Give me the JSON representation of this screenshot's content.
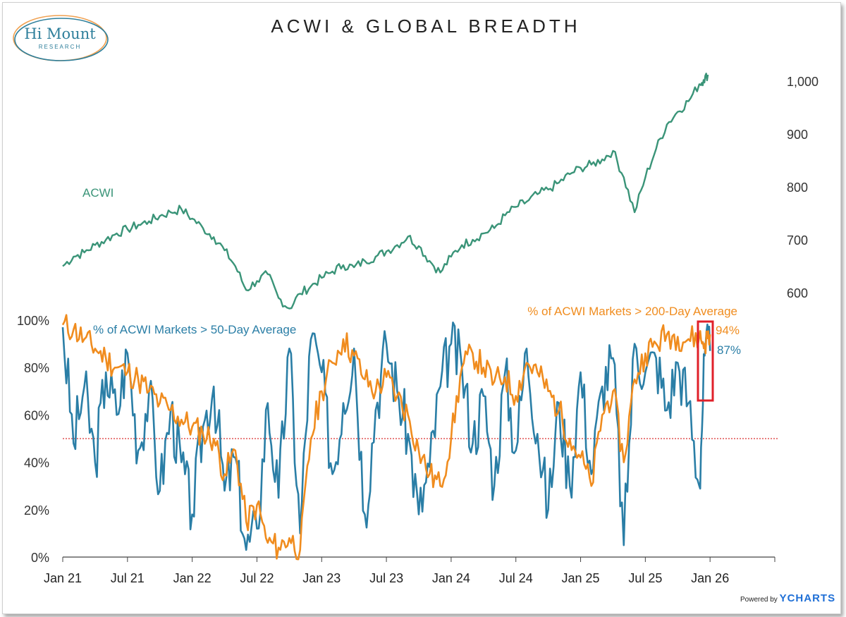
{
  "header": {
    "title": "ACWI & GLOBAL BREADTH"
  },
  "logo": {
    "name": "Hi Mount",
    "sub": "RESEARCH"
  },
  "footer": {
    "powered_by": "Powered by",
    "brand": "YCHARTS"
  },
  "colors": {
    "acwi": "#3a9478",
    "fifty": "#2a7ea6",
    "twohundred": "#f08c1e",
    "threshold": "#d93030",
    "highlight": "#e0202a"
  },
  "chart_data": [
    {
      "type": "line",
      "name": "ACWI price",
      "series_label": "ACWI",
      "y_axis": {
        "position": "right",
        "ylim": [
          560,
          1040
        ],
        "ticks": [
          600,
          700,
          800,
          900,
          1000
        ],
        "tick_labels": [
          "600",
          "700",
          "800",
          "900",
          "1,000"
        ]
      },
      "x": [
        0,
        1,
        2,
        3,
        4,
        5,
        6,
        7,
        8,
        9,
        10,
        11,
        12,
        13,
        14,
        15,
        16,
        17,
        18,
        19,
        20,
        21,
        22,
        23,
        24,
        25,
        26,
        27,
        28,
        29,
        30,
        31,
        32,
        33,
        34,
        35,
        36,
        37,
        38,
        39,
        40,
        41,
        42,
        43,
        44,
        45,
        46,
        47,
        48,
        49,
        50,
        51,
        52,
        53,
        54,
        55,
        56,
        57,
        58,
        59
      ],
      "values": [
        650,
        668,
        676,
        690,
        700,
        712,
        720,
        728,
        735,
        745,
        752,
        758,
        740,
        722,
        705,
        680,
        650,
        605,
        622,
        635,
        590,
        570,
        598,
        612,
        628,
        640,
        652,
        648,
        660,
        668,
        678,
        690,
        706,
        688,
        660,
        638,
        668,
        690,
        700,
        712,
        722,
        746,
        762,
        772,
        786,
        795,
        808,
        824,
        836,
        842,
        852,
        868,
        818,
        752,
        818,
        872,
        918,
        942,
        962,
        994
      ],
      "end_values": [
        1002,
        1012
      ],
      "end_x": [
        59.4,
        59.8
      ]
    },
    {
      "type": "line",
      "name": "Global breadth",
      "y_axis": {
        "position": "left",
        "ylim": [
          0,
          100
        ],
        "ticks": [
          0,
          20,
          40,
          60,
          80,
          100
        ],
        "tick_labels": [
          "0%",
          "20%",
          "40%",
          "60%",
          "80%",
          "100%"
        ]
      },
      "x_axis": {
        "categories": [
          "Jan 21",
          "Jul 21",
          "Jan 22",
          "Jul 22",
          "Jan 23",
          "Jul 23",
          "Jan 24",
          "Jul 24",
          "Jan 25",
          "Jul 25",
          "Jan 26"
        ],
        "tick_x": [
          0,
          6,
          12,
          18,
          24,
          30,
          36,
          42,
          48,
          54,
          60
        ],
        "xlim": [
          0,
          66
        ]
      },
      "threshold": 50,
      "series": [
        {
          "name": "% of ACWI Markets > 50-Day Average",
          "x": [
            0,
            1,
            2,
            3,
            4,
            5,
            6,
            7,
            8,
            9,
            10,
            11,
            12,
            13,
            14,
            15,
            16,
            17,
            18,
            19,
            20,
            21,
            22,
            23,
            24,
            25,
            26,
            27,
            28,
            29,
            30,
            31,
            32,
            33,
            34,
            35,
            36,
            37,
            38,
            39,
            40,
            41,
            42,
            43,
            44,
            45,
            46,
            47,
            48,
            49,
            50,
            51,
            52,
            53,
            54,
            55,
            56,
            57,
            58,
            59,
            59.5,
            60
          ],
          "values": [
            97,
            48,
            72,
            40,
            78,
            60,
            86,
            45,
            70,
            28,
            62,
            40,
            18,
            55,
            72,
            28,
            42,
            3,
            12,
            65,
            25,
            88,
            10,
            92,
            78,
            35,
            65,
            88,
            18,
            62,
            90,
            70,
            52,
            18,
            38,
            72,
            90,
            80,
            48,
            68,
            30,
            78,
            45,
            88,
            52,
            20,
            65,
            30,
            78,
            35,
            72,
            84,
            5,
            90,
            78,
            84,
            62,
            82,
            65,
            30,
            85,
            87
          ],
          "end_label": "87%"
        },
        {
          "name": "% of ACWI Markets > 200-Day Average",
          "x": [
            0,
            1,
            2,
            3,
            4,
            5,
            6,
            7,
            8,
            9,
            10,
            11,
            12,
            13,
            14,
            15,
            16,
            17,
            18,
            19,
            20,
            21,
            22,
            23,
            24,
            25,
            26,
            27,
            28,
            29,
            30,
            31,
            32,
            33,
            34,
            35,
            36,
            37,
            38,
            39,
            40,
            41,
            42,
            43,
            44,
            45,
            46,
            47,
            48,
            49,
            50,
            51,
            52,
            53,
            54,
            55,
            56,
            57,
            58,
            59,
            59.5,
            60
          ],
          "values": [
            98,
            96,
            92,
            88,
            84,
            80,
            78,
            75,
            70,
            65,
            62,
            58,
            55,
            52,
            50,
            35,
            45,
            15,
            22,
            6,
            4,
            8,
            3,
            50,
            70,
            82,
            92,
            85,
            75,
            70,
            76,
            68,
            60,
            45,
            35,
            30,
            50,
            80,
            86,
            80,
            74,
            76,
            68,
            82,
            78,
            70,
            62,
            50,
            42,
            30,
            60,
            70,
            40,
            75,
            86,
            90,
            94,
            93,
            92,
            93,
            90,
            94
          ],
          "end_label": "94%"
        }
      ]
    }
  ]
}
